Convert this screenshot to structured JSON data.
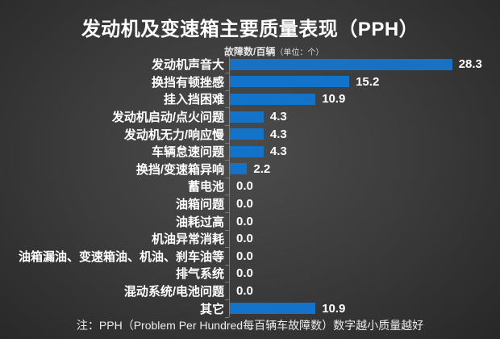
{
  "page": {
    "footer_note": "注：PPH（Problem Per Hundred每百辆车故障数）数字越小质量越好"
  },
  "colors": {
    "bar": "#1273c8",
    "text": "#ffffff",
    "axis": "#7d7d7d",
    "background_center": "#4c4c4c",
    "background_edge": "#282828"
  },
  "chart_data": {
    "type": "bar",
    "orientation": "horizontal",
    "title": "发动机及变速箱主要质量表现（PPH）",
    "axis_caption": "故障数/百辆（单位：个）",
    "axis_caption_main": "故障数/百辆",
    "axis_caption_unit": "（单位：个）",
    "categories": [
      "发动机声音大",
      "换挡有顿挫感",
      "挂入挡困难",
      "发动机启动/点火问题",
      "发动机无力/响应慢",
      "车辆怠速问题",
      "换挡/变速箱异响",
      "蓄电池",
      "油箱问题",
      "油耗过高",
      "机油异常消耗",
      "油箱漏油、变速箱油、机油、刹车油等",
      "排气系统",
      "混动系统/电池问题",
      "其它"
    ],
    "values": [
      28.3,
      15.2,
      10.9,
      4.3,
      4.3,
      4.3,
      2.2,
      0.0,
      0.0,
      0.0,
      0.0,
      0.0,
      0.0,
      0.0,
      10.9
    ],
    "xlim": [
      0,
      30
    ],
    "value_label_decimals": 1,
    "data_labels": true,
    "legend": "none",
    "grid": "off",
    "note": "注：PPH（Problem Per Hundred每百辆车故障数）数字越小质量越好"
  }
}
